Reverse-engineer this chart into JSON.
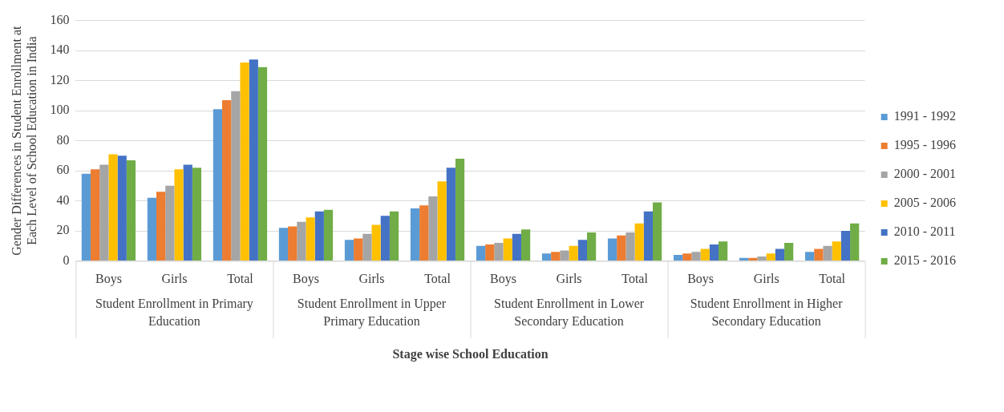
{
  "chart_data": {
    "type": "bar",
    "xlabel": "Stage wise School Education",
    "ylabel": "Gender Differences in Student Enrollment at Each Level of School Education in India",
    "categories": [
      "Boys",
      "Girls",
      "Total",
      "Boys",
      "Girls",
      "Total",
      "Boys",
      "Girls",
      "Total",
      "Boys",
      "Girls",
      "Total"
    ],
    "annotations": [
      "Student Enrollment in Primary Education",
      "Student Enrollment in Upper Primary Education",
      "Student Enrollment in Lower Secondary Education",
      "Student Enrollment in Higher Secondary Education"
    ],
    "series": [
      {
        "name": "1991 - 1992",
        "color": "#5b9bd5",
        "values": [
          58,
          42,
          101,
          22,
          14,
          35,
          10,
          5,
          15,
          4,
          2,
          6
        ]
      },
      {
        "name": "1995 - 1996",
        "color": "#ed7d31",
        "values": [
          61,
          46,
          107,
          23,
          15,
          37,
          11,
          6,
          17,
          5,
          2,
          8
        ]
      },
      {
        "name": "2000 - 2001",
        "color": "#a5a5a5",
        "values": [
          64,
          50,
          113,
          26,
          18,
          43,
          12,
          7,
          19,
          6,
          3,
          10
        ]
      },
      {
        "name": "2005 - 2006",
        "color": "#ffc000",
        "values": [
          71,
          61,
          132,
          29,
          24,
          53,
          15,
          10,
          25,
          8,
          5,
          13
        ]
      },
      {
        "name": "2010 - 2011",
        "color": "#4472c4",
        "values": [
          70,
          64,
          134,
          33,
          30,
          62,
          18,
          14,
          33,
          11,
          8,
          20
        ]
      },
      {
        "name": "2015 - 2016",
        "color": "#70ad47",
        "values": [
          67,
          62,
          129,
          34,
          33,
          68,
          21,
          19,
          39,
          13,
          12,
          25
        ]
      }
    ],
    "ylim": [
      0,
      160
    ],
    "yticks": [
      0,
      20,
      40,
      60,
      80,
      100,
      120,
      140,
      160
    ],
    "grid": "y",
    "legend": "right"
  }
}
